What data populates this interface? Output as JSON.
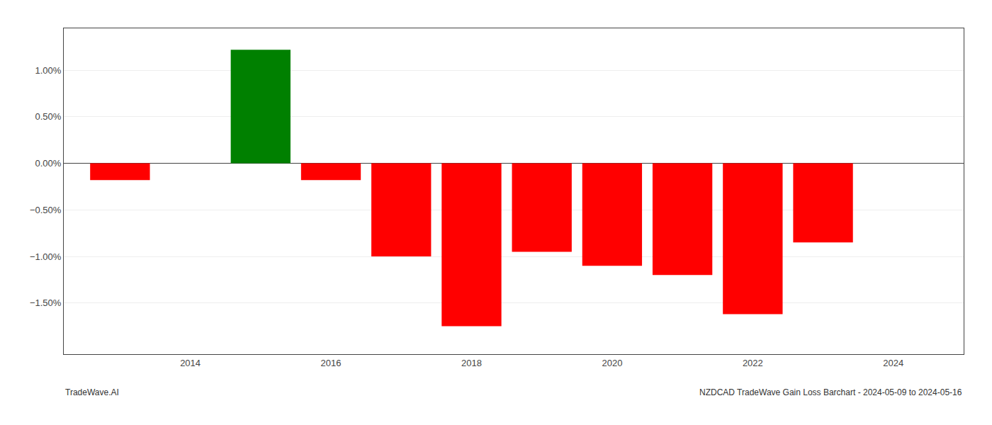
{
  "chart_data": {
    "type": "bar",
    "x": [
      2013,
      2015,
      2016,
      2017,
      2018,
      2019,
      2020,
      2021,
      2022,
      2023
    ],
    "values": [
      -0.18,
      1.22,
      -0.18,
      -1.0,
      -1.75,
      -0.95,
      -1.1,
      -1.2,
      -1.62,
      -0.85
    ],
    "colors": [
      "#ff0000",
      "#008000",
      "#ff0000",
      "#ff0000",
      "#ff0000",
      "#ff0000",
      "#ff0000",
      "#ff0000",
      "#ff0000",
      "#ff0000"
    ],
    "xlim": [
      2012.2,
      2025.0
    ],
    "xticks": [
      2014,
      2016,
      2018,
      2020,
      2022,
      2024
    ],
    "ylim": [
      -2.05,
      1.45
    ],
    "yticks": [
      {
        "value": -1.5,
        "label": "−1.50%"
      },
      {
        "value": -1.0,
        "label": "−1.00%"
      },
      {
        "value": -0.5,
        "label": "−0.50%"
      },
      {
        "value": 0.0,
        "label": "0.00%"
      },
      {
        "value": 0.5,
        "label": "0.50%"
      },
      {
        "value": 1.0,
        "label": "1.00%"
      }
    ],
    "grid": "y",
    "annotations": [
      "TradeWave.AI",
      "NZDCAD TradeWave Gain Loss Barchart - 2024-05-09 to 2024-05-16"
    ]
  }
}
